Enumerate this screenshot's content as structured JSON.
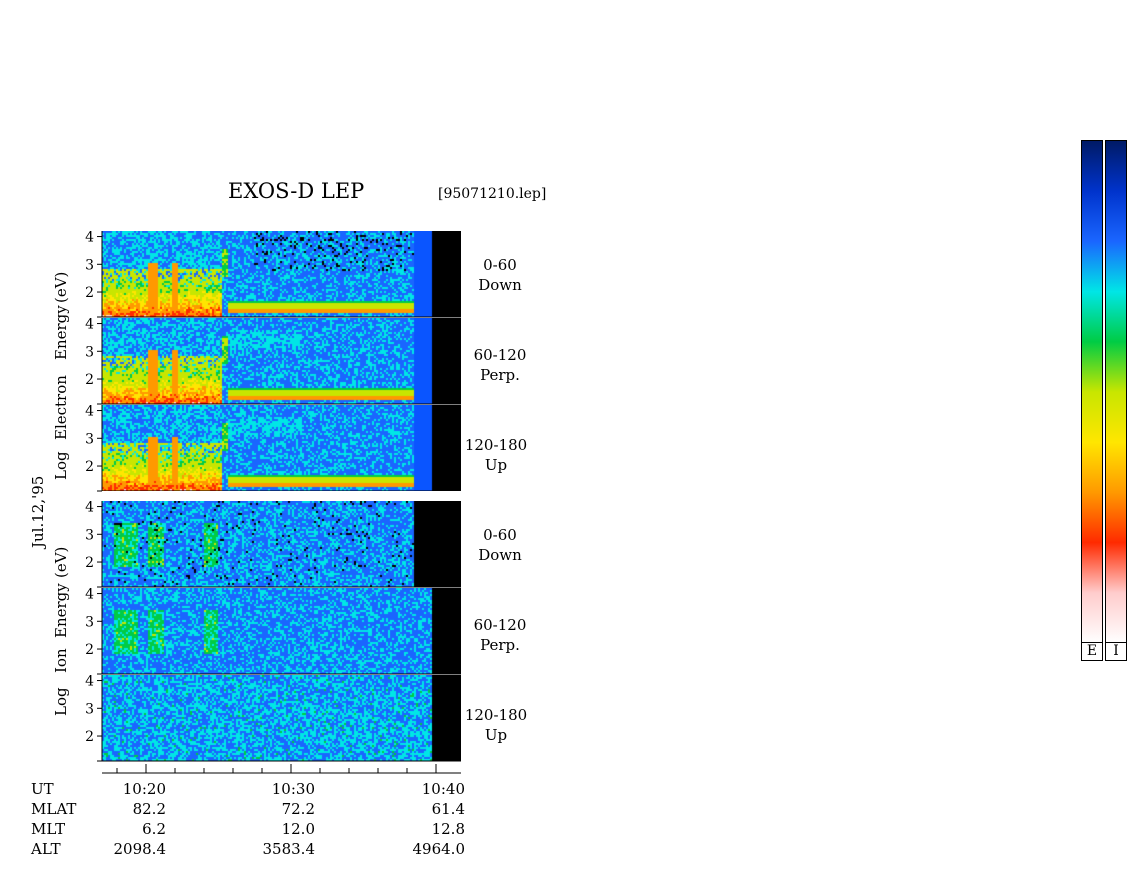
{
  "header": {
    "title": "EXOS-D LEP",
    "file_label": "[95071210.lep]"
  },
  "date_label": "Jul.12,'95",
  "electron_ylabel": [
    "Log",
    "Electron",
    "Energy",
    "(eV)"
  ],
  "ion_ylabel": [
    "Log",
    "Ion",
    "Energy",
    "(eV)"
  ],
  "panels": [
    {
      "group": "electron",
      "line1": "0-60",
      "line2": "Down"
    },
    {
      "group": "electron",
      "line1": "60-120",
      "line2": "Perp."
    },
    {
      "group": "electron",
      "line1": "120-180",
      "line2": "Up"
    },
    {
      "group": "ion",
      "line1": "0-60",
      "line2": "Down"
    },
    {
      "group": "ion",
      "line1": "60-120",
      "line2": "Perp."
    },
    {
      "group": "ion",
      "line1": "120-180",
      "line2": "Up"
    }
  ],
  "info_table": {
    "row_labels": [
      "UT",
      "MLAT",
      "MLT",
      "ALT"
    ],
    "columns": [
      {
        "UT": "10:20",
        "MLAT": "82.2",
        "MLT": "6.2",
        "ALT": "2098.4"
      },
      {
        "UT": "10:30",
        "MLAT": "72.2",
        "MLT": "12.0",
        "ALT": "3583.4"
      },
      {
        "UT": "10:40",
        "MLAT": "61.4",
        "MLT": "12.8",
        "ALT": "4964.0"
      }
    ]
  },
  "colorbars": [
    {
      "label": "E"
    },
    {
      "label": "I"
    }
  ],
  "colors": {
    "panel_background": "#0033cc",
    "missing_data": "#000000"
  },
  "chart_data": {
    "type": "heatmap",
    "title": "EXOS-D LEP",
    "x_axis": {
      "quantity": "UT",
      "ticks": [
        "10:20",
        "10:30",
        "10:40"
      ]
    },
    "y_axis": {
      "label": "Log Energy (eV)",
      "ticks": [
        2,
        3,
        4
      ]
    },
    "panels": [
      {
        "species": "Electron",
        "pitch_angle": "0-60 Down"
      },
      {
        "species": "Electron",
        "pitch_angle": "60-120 Perp."
      },
      {
        "species": "Electron",
        "pitch_angle": "120-180 Up"
      },
      {
        "species": "Ion",
        "pitch_angle": "0-60 Down"
      },
      {
        "species": "Ion",
        "pitch_angle": "60-120 Perp."
      },
      {
        "species": "Ion",
        "pitch_angle": "120-180 Up"
      }
    ],
    "colorbar_labels": [
      "E",
      "I"
    ],
    "colorscale": [
      "#001a66",
      "#0033cc",
      "#1a66ff",
      "#00e6e6",
      "#00cc44",
      "#c8e600",
      "#ffe600",
      "#ff9900",
      "#ff2a00",
      "#ffcccc",
      "#ffffff"
    ]
  }
}
